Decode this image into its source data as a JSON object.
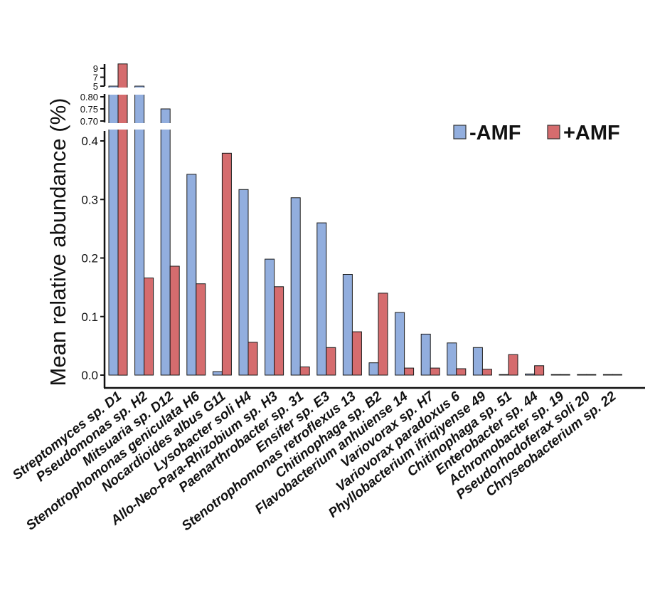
{
  "chart_data": {
    "type": "bar",
    "ylabel": "Mean relative abundance (%)",
    "xlabel": "",
    "title": "",
    "categories": [
      "Streptomyces sp. D1",
      "Pseudomonas sp. H2",
      "Mitsuaria sp. D12",
      "Stenotrophomonas geniculata H6",
      "Nocardioides albus G11",
      "Lysobacter soli H4",
      "Allo-Neo-Para-Rhizobium sp. H3",
      "Paenarthrobacter sp. 31",
      "Ensifer sp. E3",
      "Stenotrophomonas retroflexus 13",
      "Chitinophaga sp. B2",
      "Flavobacterium anhuiense 14",
      "Variovorax sp. H7",
      "Variovorax paradoxus 6",
      "Phyllobacterium ifriqiyense 49",
      "Chitinophaga sp. 51",
      "Enterobacter sp. 44",
      "Achromobacter sp. 19",
      "Pseudorhodoferax soli 20",
      "Chryseobacterium sp. 22"
    ],
    "series": [
      {
        "name": "-AMF",
        "color": "#92aede",
        "values": [
          5.0,
          5.0,
          0.75,
          0.343,
          0.006,
          0.317,
          0.198,
          0.303,
          0.26,
          0.172,
          0.021,
          0.107,
          0.07,
          0.055,
          0.047,
          0.001,
          0.002,
          0.001,
          0.001,
          0.001
        ]
      },
      {
        "name": "+AMF",
        "color": "#d56c6e",
        "values": [
          10.0,
          0.166,
          0.186,
          0.156,
          0.379,
          0.056,
          0.151,
          0.014,
          0.047,
          0.074,
          0.14,
          0.012,
          0.012,
          0.011,
          0.01,
          0.035,
          0.016,
          0.0,
          0.0,
          0.0
        ]
      }
    ],
    "y_axis_segments": {
      "lower": {
        "range": [
          0,
          0.44
        ],
        "ticks": [
          "0.0",
          "0.1",
          "0.2",
          "0.3",
          "0.4"
        ]
      },
      "middle": {
        "range": [
          0.68,
          0.82
        ],
        "ticks": [
          "0.70",
          "0.75",
          "0.80"
        ]
      },
      "upper": {
        "range": [
          4.5,
          10
        ],
        "ticks": [
          "5",
          "7",
          "9"
        ]
      }
    },
    "legend_position": "top-right",
    "grid": false
  }
}
